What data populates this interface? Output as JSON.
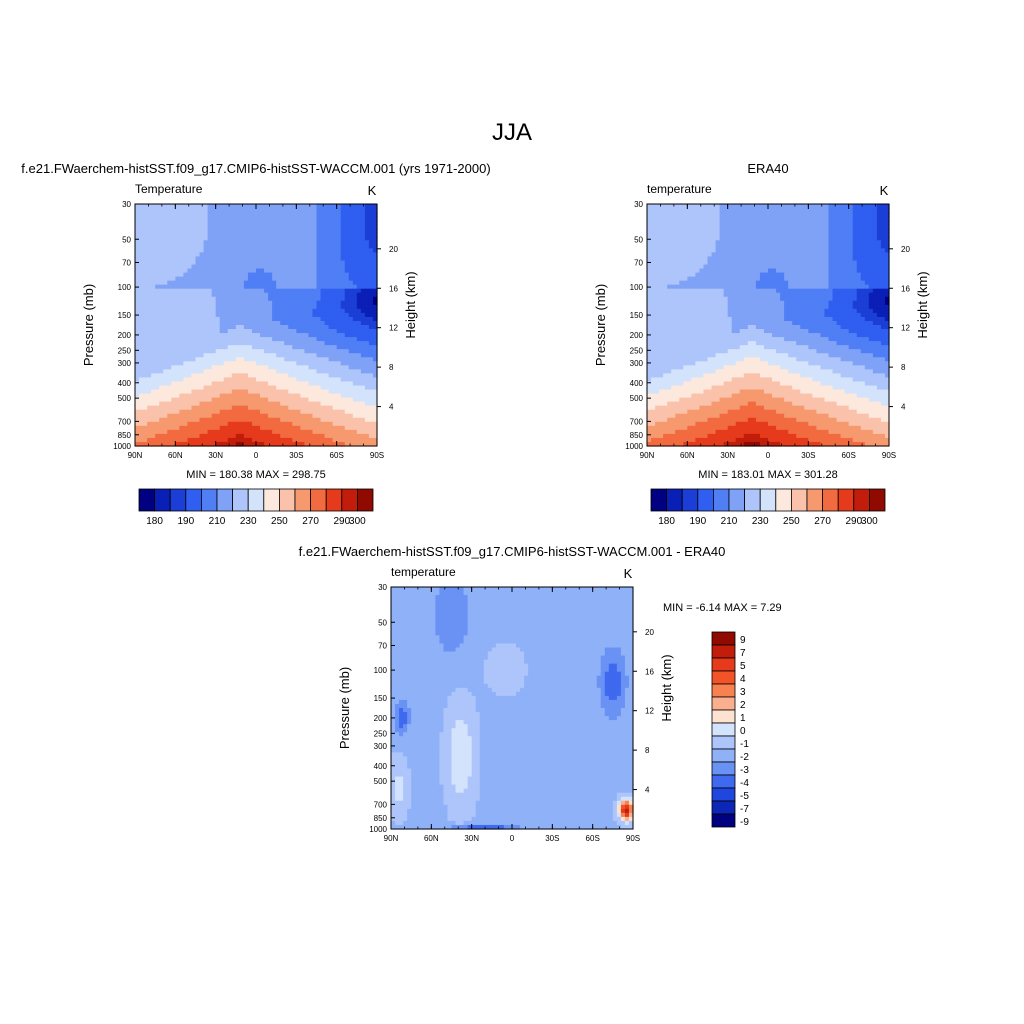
{
  "title": "JJA",
  "panels": {
    "model": {
      "title": "f.e21.FWaerchem-histSST.f09_g17.CMIP6-histSST-WACCM.001 (yrs 1971-2000)",
      "left_label": "Temperature",
      "right_label": "K",
      "stats": "MIN = 180.38  MAX = 298.75"
    },
    "obs": {
      "title": "ERA40",
      "left_label": "temperature",
      "right_label": "K",
      "stats": "MIN = 183.01  MAX = 301.28"
    },
    "diff": {
      "title": "f.e21.FWaerchem-histSST.f09_g17.CMIP6-histSST-WACCM.001 - ERA40",
      "left_label": "temperature",
      "right_label": "K",
      "stats": "MIN =  -6.14  MAX =   7.29"
    }
  },
  "axes": {
    "ylabel": "Pressure (mb)",
    "y2label": "Height (km)",
    "pressure_ticks": [
      "30",
      "50",
      "70",
      "100",
      "150",
      "200",
      "250",
      "300",
      "400",
      "500",
      "700",
      "850",
      "1000"
    ],
    "height_ticks": [
      "20",
      "16",
      "12",
      "8",
      "4"
    ],
    "lat_ticks": [
      "90N",
      "60N",
      "30N",
      "0",
      "30S",
      "60S",
      "90S"
    ]
  },
  "colorbars": {
    "temperature_labels": [
      "180",
      "190",
      "210",
      "230",
      "250",
      "270",
      "290",
      "300"
    ],
    "temperature_colors": [
      "#000080",
      "#0a1fb5",
      "#1a3ed6",
      "#2f5ef0",
      "#4f7ef5",
      "#7fa2f7",
      "#adc5fa",
      "#d3e3fc",
      "#fde8dd",
      "#fac2aa",
      "#f7996f",
      "#f26a3f",
      "#e63a1c",
      "#c21d0a",
      "#900a00"
    ],
    "diff_labels": [
      "9",
      "7",
      "5",
      "4",
      "3",
      "2",
      "1",
      "0",
      "-1",
      "-2",
      "-3",
      "-4",
      "-5",
      "-7",
      "-9"
    ],
    "diff_colors": [
      "#900a00",
      "#c21d0a",
      "#e63a1c",
      "#f25428",
      "#f7814f",
      "#fab08f",
      "#fde1d1",
      "#d3e3fc",
      "#adc5fa",
      "#8fb1f8",
      "#6a92f4",
      "#3f69ef",
      "#1f47dd",
      "#0c26b8",
      "#000080"
    ]
  },
  "chart_data": [
    {
      "type": "heatmap",
      "title": "f.e21.FWaerchem-histSST.f09_g17.CMIP6-histSST-WACCM.001 (yrs 1971-2000)",
      "variable": "Temperature",
      "units": "K",
      "xlabel": "",
      "ylabel": "Pressure (mb)",
      "y2label": "Height (km)",
      "x_ticks": [
        "90N",
        "60N",
        "30N",
        "0",
        "30S",
        "60S",
        "90S"
      ],
      "ylim": [
        1000,
        30
      ],
      "y_scale": "log",
      "min": 180.38,
      "max": 298.75
    },
    {
      "type": "heatmap",
      "title": "ERA40",
      "variable": "temperature",
      "units": "K",
      "xlabel": "",
      "ylabel": "Pressure (mb)",
      "y2label": "Height (km)",
      "x_ticks": [
        "90N",
        "60N",
        "30N",
        "0",
        "30S",
        "60S",
        "90S"
      ],
      "ylim": [
        1000,
        30
      ],
      "y_scale": "log",
      "min": 183.01,
      "max": 301.28
    },
    {
      "type": "heatmap",
      "title": "f.e21.FWaerchem-histSST.f09_g17.CMIP6-histSST-WACCM.001 - ERA40",
      "variable": "temperature",
      "units": "K",
      "xlabel": "",
      "ylabel": "Pressure (mb)",
      "y2label": "Height (km)",
      "x_ticks": [
        "90N",
        "60N",
        "30N",
        "0",
        "30S",
        "60S",
        "90S"
      ],
      "ylim": [
        1000,
        30
      ],
      "y_scale": "log",
      "min": -6.14,
      "max": 7.29
    }
  ]
}
